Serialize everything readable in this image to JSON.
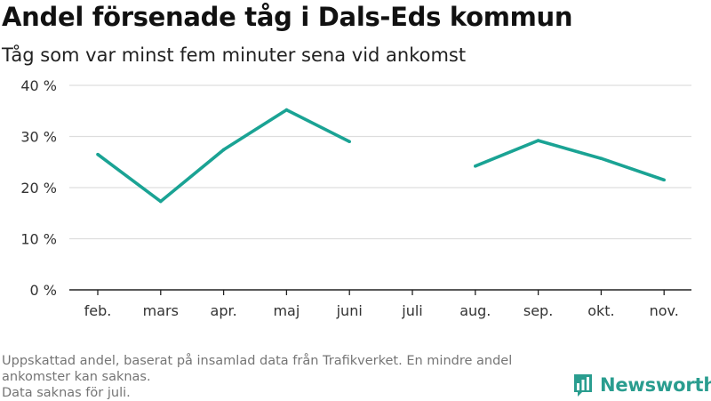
{
  "title": "Andel försenade tåg i Dals-Eds kommun",
  "subtitle": "Tåg som var minst fem minuter sena vid ankomst",
  "footnote": [
    "Uppskattad andel, baserat på insamlad data från Trafikverket. En mindre andel ankomster kan saknas.",
    "Data saknas för juli."
  ],
  "brand": {
    "name": "Newsworthy",
    "icon": "newsworthy-logo-icon"
  },
  "colors": {
    "line": "#1aa394",
    "grid": "#dddddd",
    "axis": "#222222",
    "text": "#333333"
  },
  "chart_data": {
    "type": "line",
    "categories": [
      "feb.",
      "mars",
      "apr.",
      "maj",
      "juni",
      "juli",
      "aug.",
      "sep.",
      "okt.",
      "nov."
    ],
    "series": [
      {
        "values": [
          26.5,
          17.3,
          27.4,
          35.2,
          29.0,
          null,
          24.2,
          29.2,
          25.7,
          21.5
        ]
      }
    ],
    "ylim": [
      0,
      40
    ],
    "yticks": [
      0,
      10,
      20,
      30,
      40
    ],
    "ytick_labels": [
      "0 %",
      "10 %",
      "20 %",
      "30 %",
      "40 %"
    ],
    "xlabel": "",
    "ylabel": "",
    "grid": true,
    "legend": "none"
  }
}
